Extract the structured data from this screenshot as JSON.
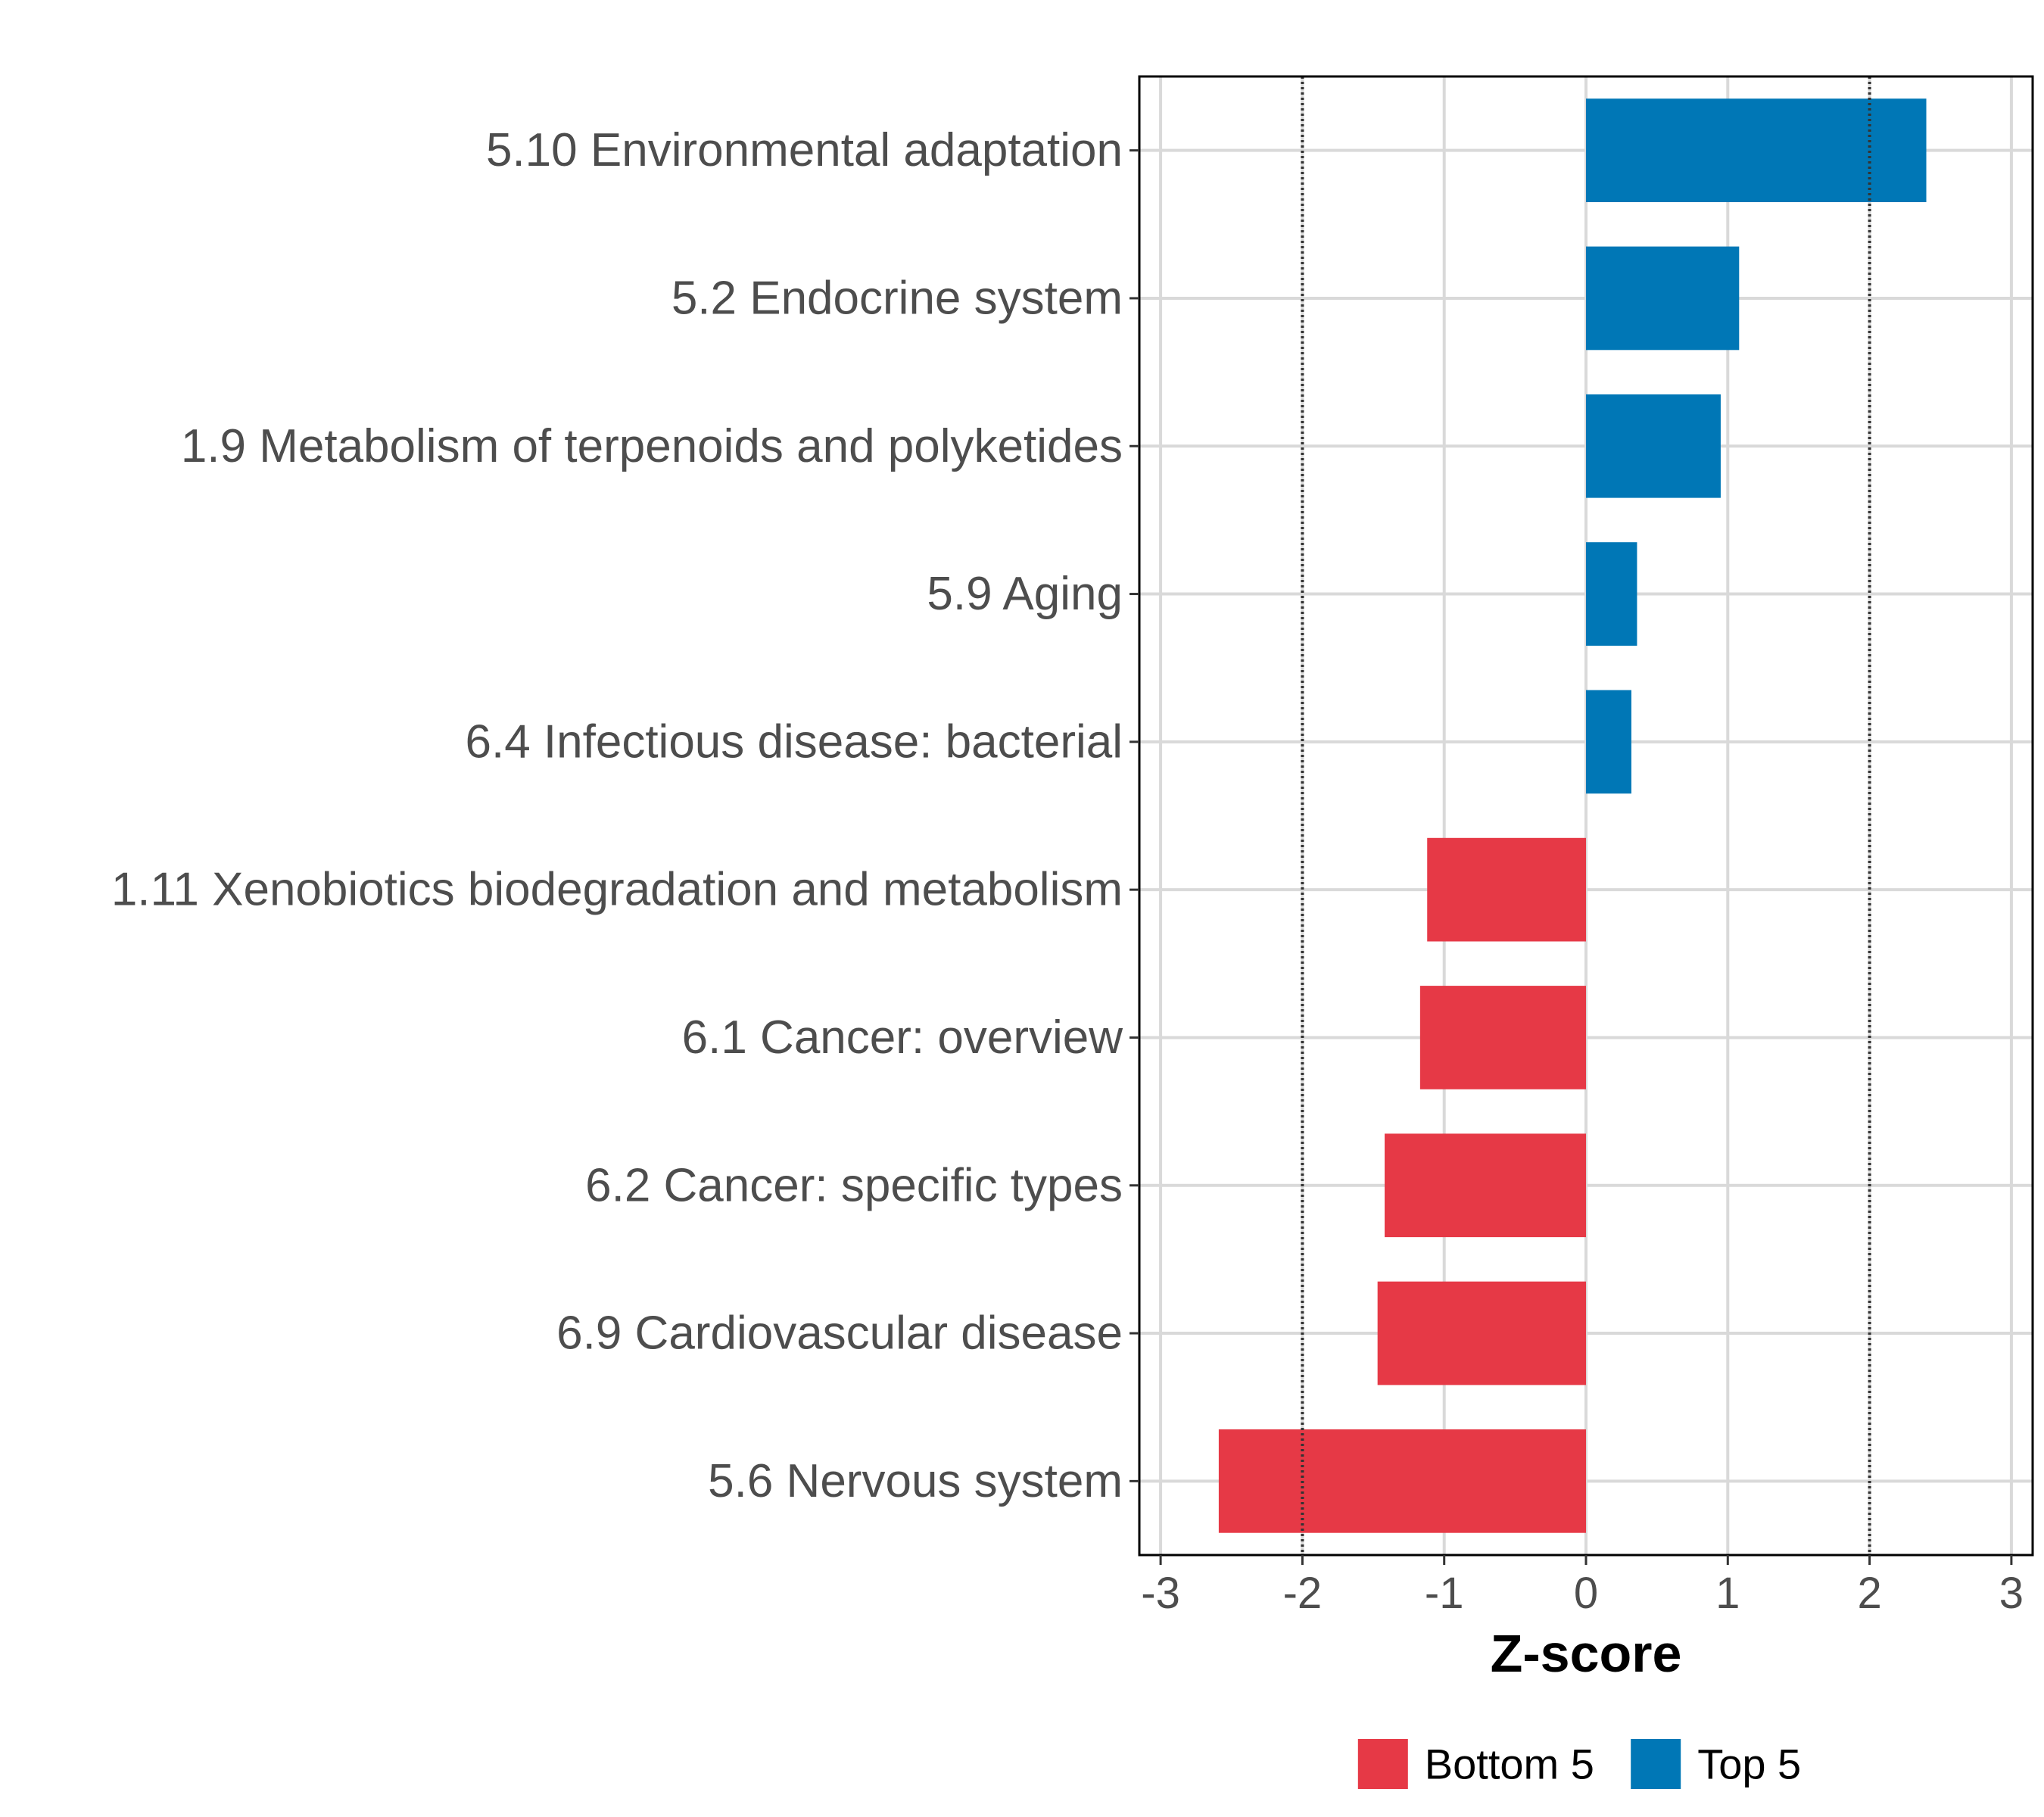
{
  "chart_data": {
    "type": "bar",
    "orientation": "horizontal",
    "title": "",
    "xlabel": "Z-score",
    "ylabel": "",
    "xlim": [
      -3.15,
      3.15
    ],
    "x_ticks": [
      -3,
      -2,
      -1,
      0,
      1,
      2,
      3
    ],
    "x_tick_labels": [
      "-3",
      "-2",
      "-1",
      "0",
      "1",
      "2",
      "3"
    ],
    "reference_lines": [
      -2,
      2
    ],
    "grid": true,
    "legend_position": "bottom",
    "colors": {
      "Bottom 5": "#e63946",
      "Top 5": "#0077b6"
    },
    "categories": [
      "5.10 Environmental adaptation",
      "5.2 Endocrine system",
      "1.9 Metabolism of terpenoids and polyketides",
      "5.9 Aging",
      "6.4 Infectious disease: bacterial",
      "1.11 Xenobiotics biodegradation and metabolism",
      "6.1 Cancer: overview",
      "6.2 Cancer: specific types",
      "6.9 Cardiovascular disease",
      "5.6 Nervous system"
    ],
    "values": [
      2.4,
      1.08,
      0.95,
      0.36,
      0.32,
      -1.12,
      -1.17,
      -1.42,
      -1.47,
      -2.59
    ],
    "groups": [
      "Top 5",
      "Top 5",
      "Top 5",
      "Top 5",
      "Top 5",
      "Bottom 5",
      "Bottom 5",
      "Bottom 5",
      "Bottom 5",
      "Bottom 5"
    ],
    "legend": [
      "Bottom 5",
      "Top 5"
    ]
  }
}
